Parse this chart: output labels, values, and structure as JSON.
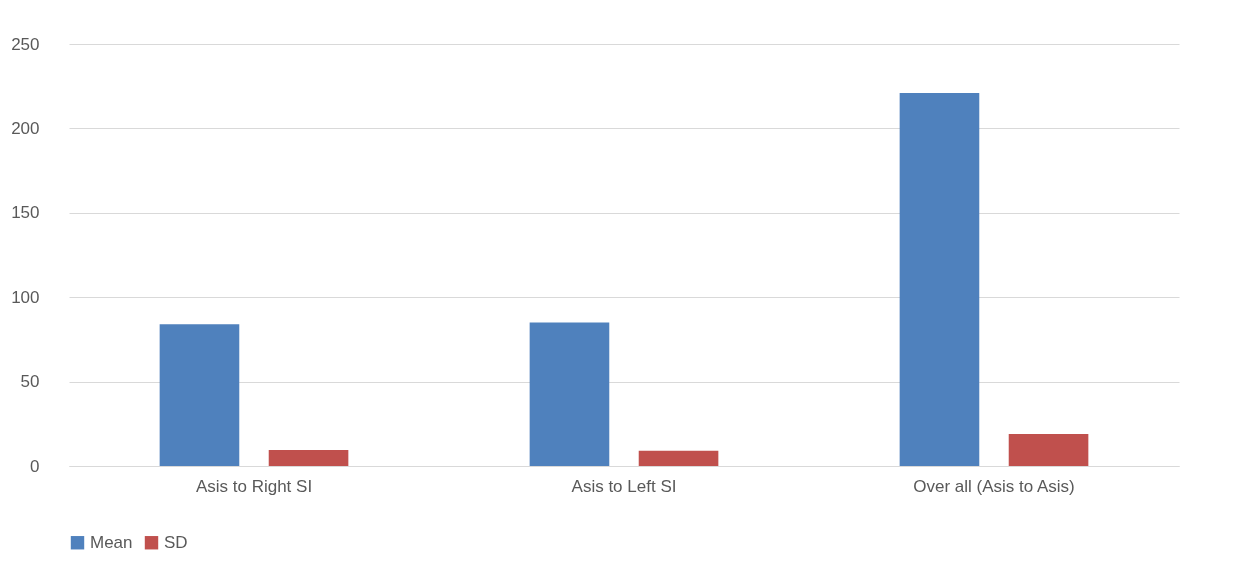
{
  "chart_data": {
    "type": "bar",
    "categories": [
      "Asis to Right SI",
      "Asis to Left SI",
      "Over all (Asis to Asis)"
    ],
    "series": [
      {
        "name": "Mean",
        "color": "#4f81bd",
        "values": [
          84,
          85,
          221
        ]
      },
      {
        "name": "SD",
        "color": "#c0504d",
        "values": [
          9.5,
          9,
          19
        ]
      }
    ],
    "ylim": [
      0,
      250
    ],
    "yticks": [
      0,
      50,
      100,
      150,
      200,
      250
    ],
    "grid": true,
    "legend": "bottom"
  }
}
